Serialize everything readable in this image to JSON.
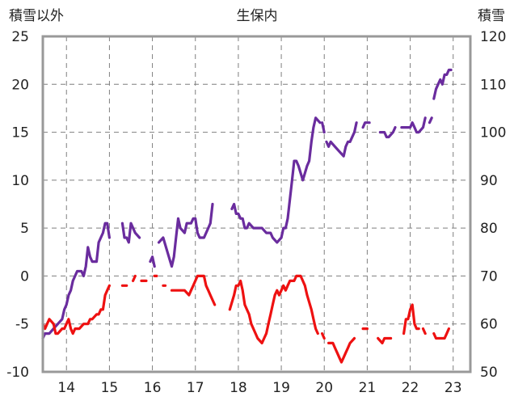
{
  "chart_data": {
    "type": "line",
    "title": "生保内",
    "left_axis_label": "積雪以外",
    "right_axis_label": "積雪",
    "left_ylim": [
      -10,
      25
    ],
    "right_ylim": [
      50,
      120
    ],
    "left_ticks": [
      "25",
      "20",
      "15",
      "10",
      "5",
      "0",
      "-5",
      "-10"
    ],
    "right_ticks": [
      "120",
      "110",
      "100",
      "90",
      "80",
      "70",
      "60",
      "50"
    ],
    "x_ticks": [
      "14",
      "15",
      "16",
      "17",
      "18",
      "19",
      "20",
      "21",
      "22",
      "23"
    ],
    "xlim": [
      13.45,
      23.4
    ],
    "grid": "dashed-vertical-at-years, dashed-horizontal-at-major-ticks",
    "colors": {
      "purple": "#6a2c9e",
      "red": "#ee1111",
      "frame": "#999999",
      "grid": "#7f7f7f"
    },
    "series": [
      {
        "color": "purple",
        "axis": "left",
        "segments": [
          [
            [
              13.45,
              -6.5
            ],
            [
              13.5,
              -6
            ],
            [
              13.6,
              -6
            ],
            [
              13.7,
              -5.5
            ],
            [
              13.8,
              -5
            ],
            [
              13.9,
              -4.5
            ],
            [
              13.95,
              -3.5
            ],
            [
              14.0,
              -3
            ],
            [
              14.05,
              -2
            ],
            [
              14.1,
              -1.5
            ],
            [
              14.15,
              -0.5
            ],
            [
              14.2,
              0
            ],
            [
              14.25,
              0.5
            ],
            [
              14.35,
              0.5
            ],
            [
              14.4,
              0
            ],
            [
              14.45,
              1
            ],
            [
              14.5,
              3
            ],
            [
              14.55,
              2
            ],
            [
              14.6,
              1.5
            ],
            [
              14.7,
              1.5
            ],
            [
              14.75,
              3.5
            ],
            [
              14.85,
              4.5
            ],
            [
              14.9,
              5.5
            ],
            [
              14.95,
              5.5
            ],
            [
              15.0,
              4
            ]
          ],
          [
            [
              15.3,
              5.5
            ],
            [
              15.35,
              4
            ],
            [
              15.4,
              4
            ],
            [
              15.45,
              3.5
            ],
            [
              15.5,
              5.5
            ],
            [
              15.6,
              4.5
            ],
            [
              15.7,
              4
            ]
          ],
          [
            [
              15.95,
              1.5
            ],
            [
              16.0,
              2
            ],
            [
              16.05,
              1
            ]
          ],
          [
            [
              16.15,
              3.5
            ],
            [
              16.25,
              4
            ],
            [
              16.35,
              2.5
            ],
            [
              16.45,
              1
            ],
            [
              16.5,
              2
            ],
            [
              16.55,
              4
            ],
            [
              16.6,
              6
            ],
            [
              16.65,
              5
            ],
            [
              16.75,
              4.5
            ],
            [
              16.8,
              5.5
            ],
            [
              16.9,
              5.5
            ],
            [
              16.95,
              6
            ],
            [
              17.0,
              6
            ],
            [
              17.05,
              4.5
            ],
            [
              17.1,
              4
            ],
            [
              17.2,
              4
            ],
            [
              17.3,
              5
            ],
            [
              17.35,
              5.5
            ],
            [
              17.4,
              7.5
            ]
          ]
        ]
      },
      {
        "color": "purple",
        "axis": "left",
        "segments": [
          [
            [
              17.85,
              7
            ],
            [
              17.9,
              7.5
            ],
            [
              17.95,
              6.5
            ],
            [
              18.0,
              6.5
            ],
            [
              18.05,
              6
            ],
            [
              18.1,
              6
            ],
            [
              18.15,
              5
            ],
            [
              18.2,
              5
            ],
            [
              18.25,
              5.5
            ],
            [
              18.35,
              5
            ],
            [
              18.45,
              5
            ],
            [
              18.55,
              5
            ],
            [
              18.65,
              4.5
            ],
            [
              18.75,
              4.5
            ],
            [
              18.8,
              4
            ],
            [
              18.9,
              3.5
            ],
            [
              19.0,
              4
            ],
            [
              19.05,
              5
            ],
            [
              19.1,
              5
            ],
            [
              19.15,
              6
            ],
            [
              19.2,
              8
            ],
            [
              19.25,
              10
            ],
            [
              19.3,
              12
            ],
            [
              19.35,
              12
            ],
            [
              19.4,
              11.5
            ],
            [
              19.5,
              10
            ],
            [
              19.6,
              11.5
            ],
            [
              19.65,
              12
            ],
            [
              19.7,
              14
            ],
            [
              19.75,
              15.5
            ],
            [
              19.8,
              16.5
            ],
            [
              19.9,
              16
            ]
          ],
          [
            [
              19.95,
              16
            ],
            [
              20.0,
              15
            ]
          ],
          [
            [
              20.05,
              14
            ],
            [
              20.1,
              13.5
            ],
            [
              20.15,
              14
            ],
            [
              20.25,
              13.5
            ],
            [
              20.35,
              13
            ],
            [
              20.45,
              12.5
            ],
            [
              20.5,
              13.5
            ],
            [
              20.55,
              14
            ],
            [
              20.6,
              14
            ],
            [
              20.7,
              15
            ],
            [
              20.75,
              16
            ]
          ],
          [
            [
              20.9,
              15.5
            ],
            [
              20.95,
              16
            ],
            [
              21.05,
              16
            ]
          ],
          [
            [
              21.3,
              15
            ],
            [
              21.4,
              15
            ],
            [
              21.45,
              14.5
            ],
            [
              21.5,
              14.5
            ],
            [
              21.6,
              15
            ],
            [
              21.65,
              15.5
            ]
          ],
          [
            [
              21.8,
              15.5
            ],
            [
              21.9,
              15.5
            ],
            [
              22.0,
              15.5
            ],
            [
              22.05,
              16
            ],
            [
              22.1,
              15.5
            ],
            [
              22.15,
              15
            ],
            [
              22.2,
              15
            ],
            [
              22.3,
              15.5
            ],
            [
              22.35,
              16.5
            ]
          ],
          [
            [
              22.45,
              16
            ],
            [
              22.5,
              16.5
            ]
          ],
          [
            [
              22.55,
              18.5
            ],
            [
              22.6,
              19.5
            ],
            [
              22.65,
              20
            ],
            [
              22.7,
              20.5
            ],
            [
              22.75,
              20
            ],
            [
              22.8,
              21
            ],
            [
              22.85,
              21
            ],
            [
              22.9,
              21.5
            ],
            [
              22.95,
              21.5
            ]
          ]
        ]
      },
      {
        "color": "red",
        "axis": "left",
        "segments": [
          [
            [
              13.45,
              -5
            ],
            [
              13.5,
              -5.5
            ],
            [
              13.55,
              -5
            ],
            [
              13.6,
              -4.5
            ],
            [
              13.7,
              -5
            ],
            [
              13.75,
              -6
            ],
            [
              13.8,
              -6
            ],
            [
              13.9,
              -5.5
            ],
            [
              13.95,
              -5.5
            ],
            [
              14.0,
              -5
            ],
            [
              14.05,
              -4.5
            ],
            [
              14.1,
              -5.5
            ],
            [
              14.15,
              -6
            ],
            [
              14.2,
              -5.5
            ],
            [
              14.3,
              -5.5
            ],
            [
              14.4,
              -5
            ],
            [
              14.5,
              -5
            ],
            [
              14.55,
              -4.5
            ],
            [
              14.6,
              -4.5
            ],
            [
              14.7,
              -4
            ],
            [
              14.75,
              -4
            ],
            [
              14.8,
              -3.5
            ],
            [
              14.85,
              -3.5
            ],
            [
              14.9,
              -2
            ],
            [
              14.95,
              -1.5
            ],
            [
              15.0,
              -1
            ]
          ],
          [
            [
              15.3,
              -1
            ],
            [
              15.4,
              -1
            ]
          ],
          [
            [
              15.55,
              -0.5
            ],
            [
              15.6,
              0
            ]
          ],
          [
            [
              15.8,
              -0.5
            ]
          ],
          [
            [
              16.05,
              0
            ],
            [
              16.1,
              0
            ]
          ],
          [
            [
              16.25,
              -1
            ],
            [
              16.3,
              -1
            ]
          ],
          [
            [
              16.45,
              -1.5
            ],
            [
              16.55,
              -1.5
            ],
            [
              16.65,
              -1.5
            ],
            [
              16.75,
              -1.5
            ],
            [
              16.85,
              -2
            ],
            [
              16.9,
              -1.5
            ],
            [
              16.95,
              -1
            ],
            [
              17.0,
              -0.5
            ],
            [
              17.05,
              0
            ],
            [
              17.1,
              0
            ],
            [
              17.2,
              0
            ],
            [
              17.25,
              -1
            ],
            [
              17.3,
              -1.5
            ],
            [
              17.35,
              -2
            ],
            [
              17.4,
              -2.5
            ],
            [
              17.45,
              -3
            ]
          ],
          [
            [
              17.8,
              -3.5
            ],
            [
              17.9,
              -2
            ],
            [
              17.95,
              -1
            ],
            [
              18.0,
              -1
            ],
            [
              18.05,
              -0.5
            ],
            [
              18.1,
              -1.5
            ],
            [
              18.15,
              -3
            ],
            [
              18.25,
              -4
            ],
            [
              18.3,
              -5
            ],
            [
              18.4,
              -6
            ],
            [
              18.45,
              -6.5
            ],
            [
              18.55,
              -7
            ],
            [
              18.6,
              -6.5
            ],
            [
              18.65,
              -6
            ],
            [
              18.7,
              -5
            ],
            [
              18.75,
              -4
            ],
            [
              18.8,
              -3
            ],
            [
              18.85,
              -2
            ],
            [
              18.9,
              -1.5
            ],
            [
              18.95,
              -2
            ],
            [
              19.0,
              -1.5
            ],
            [
              19.05,
              -1
            ],
            [
              19.1,
              -1.5
            ],
            [
              19.15,
              -1
            ],
            [
              19.2,
              -0.5
            ],
            [
              19.3,
              -0.5
            ],
            [
              19.35,
              0
            ],
            [
              19.45,
              0
            ],
            [
              19.5,
              -0.5
            ],
            [
              19.55,
              -1
            ],
            [
              19.6,
              -2
            ],
            [
              19.7,
              -3.5
            ],
            [
              19.75,
              -4.5
            ],
            [
              19.8,
              -5.5
            ],
            [
              19.85,
              -6
            ]
          ],
          [
            [
              19.95,
              -6
            ],
            [
              20.0,
              -6.5
            ]
          ],
          [
            [
              20.1,
              -7
            ],
            [
              20.2,
              -7
            ],
            [
              20.25,
              -7.5
            ],
            [
              20.3,
              -8
            ],
            [
              20.35,
              -8.5
            ],
            [
              20.4,
              -9
            ],
            [
              20.45,
              -8.5
            ],
            [
              20.5,
              -8
            ],
            [
              20.55,
              -7.5
            ],
            [
              20.6,
              -7
            ],
            [
              20.7,
              -6.5
            ]
          ],
          [
            [
              20.9,
              -5.5
            ],
            [
              21.0,
              -5.5
            ]
          ],
          [
            [
              21.25,
              -6.5
            ],
            [
              21.35,
              -7
            ],
            [
              21.4,
              -6.5
            ],
            [
              21.5,
              -6.5
            ],
            [
              21.55,
              -6.5
            ]
          ],
          [
            [
              21.85,
              -6
            ],
            [
              21.9,
              -4.5
            ],
            [
              21.95,
              -4.5
            ],
            [
              22.0,
              -3.5
            ],
            [
              22.05,
              -3
            ],
            [
              22.1,
              -5
            ],
            [
              22.15,
              -5.5
            ],
            [
              22.2,
              -5.5
            ]
          ],
          [
            [
              22.3,
              -5.5
            ],
            [
              22.35,
              -6
            ]
          ],
          [
            [
              22.55,
              -6
            ],
            [
              22.6,
              -6.5
            ],
            [
              22.7,
              -6.5
            ],
            [
              22.8,
              -6.5
            ],
            [
              22.85,
              -6
            ],
            [
              22.9,
              -5.5
            ]
          ]
        ]
      }
    ]
  }
}
